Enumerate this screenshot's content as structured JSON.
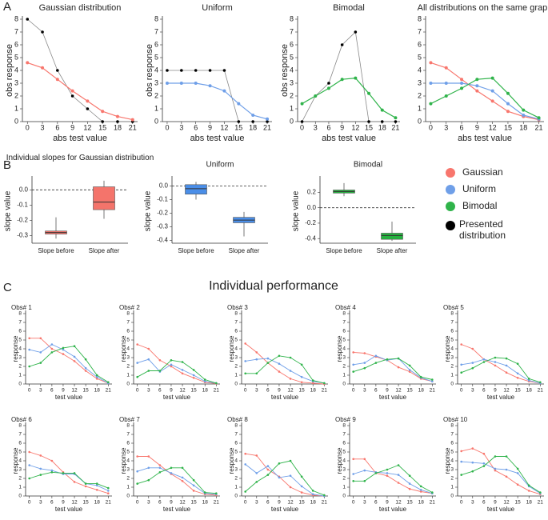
{
  "panel_labels": [
    "A",
    "B",
    "C"
  ],
  "section_title": "Individual performance",
  "legend": [
    {
      "name": "Gaussian",
      "color": "#f8766d"
    },
    {
      "name": "Uniform",
      "color": "#6f9fe8"
    },
    {
      "name": "Bimodal",
      "color": "#2fb34a"
    },
    {
      "name": "Presented distribution",
      "color": "#000000"
    }
  ],
  "chart_data": [
    {
      "type": "line",
      "title": "Gaussian distribution",
      "xlabel": "abs test value",
      "ylabel": "obs response",
      "x": [
        0,
        3,
        6,
        9,
        12,
        15,
        18,
        21
      ],
      "xlim": [
        -1,
        22
      ],
      "xticks": [
        0,
        3,
        6,
        9,
        12,
        15,
        18,
        21
      ],
      "ylim": [
        0,
        8
      ],
      "yticks": [
        0,
        1,
        2,
        3,
        4,
        5,
        6,
        7,
        8
      ],
      "series": [
        {
          "color": "#000000",
          "values": [
            8,
            7,
            4,
            2,
            1,
            0,
            0,
            0
          ]
        },
        {
          "color": "#f8766d",
          "values": [
            4.6,
            4.2,
            3.3,
            2.4,
            1.6,
            0.8,
            0.4,
            0.15
          ]
        }
      ]
    },
    {
      "type": "line",
      "title": "Uniform",
      "xlabel": "abs test value",
      "ylabel": "obs response",
      "x": [
        0,
        3,
        6,
        9,
        12,
        15,
        18,
        21
      ],
      "xlim": [
        -1,
        22
      ],
      "xticks": [
        0,
        3,
        6,
        9,
        12,
        15,
        18,
        21
      ],
      "ylim": [
        0,
        8
      ],
      "yticks": [
        0,
        1,
        2,
        3,
        4,
        5,
        6,
        7,
        8
      ],
      "series": [
        {
          "color": "#000000",
          "values": [
            4,
            4,
            4,
            4,
            4,
            0,
            0,
            0
          ]
        },
        {
          "color": "#6f9fe8",
          "values": [
            3.0,
            3.0,
            3.0,
            2.8,
            2.4,
            1.4,
            0.5,
            0.2
          ]
        }
      ]
    },
    {
      "type": "line",
      "title": "Bimodal",
      "xlabel": "abs test value",
      "ylabel": "obs response",
      "x": [
        0,
        3,
        6,
        9,
        12,
        15,
        18,
        21
      ],
      "xlim": [
        -1,
        22
      ],
      "xticks": [
        0,
        3,
        6,
        9,
        12,
        15,
        18,
        21
      ],
      "ylim": [
        0,
        8
      ],
      "yticks": [
        0,
        1,
        2,
        3,
        4,
        5,
        6,
        7,
        8
      ],
      "series": [
        {
          "color": "#000000",
          "values": [
            0,
            2,
            3,
            6,
            7,
            0,
            0,
            0
          ]
        },
        {
          "color": "#2fb34a",
          "values": [
            1.4,
            2.0,
            2.6,
            3.3,
            3.4,
            2.2,
            0.9,
            0.3
          ]
        }
      ]
    },
    {
      "type": "line",
      "title": "All distributions on the same graph",
      "xlabel": "abs test value",
      "x": [
        0,
        3,
        6,
        9,
        12,
        15,
        18,
        21
      ],
      "xlim": [
        -1,
        22
      ],
      "xticks": [
        0,
        3,
        6,
        9,
        12,
        15,
        18,
        21
      ],
      "ylim": [
        0,
        8
      ],
      "yticks": [
        0,
        1,
        2,
        3,
        4,
        5,
        6,
        7,
        8
      ],
      "series": [
        {
          "color": "#f8766d",
          "values": [
            4.6,
            4.2,
            3.3,
            2.4,
            1.6,
            0.8,
            0.4,
            0.15
          ]
        },
        {
          "color": "#6f9fe8",
          "values": [
            3.0,
            3.0,
            3.0,
            2.8,
            2.4,
            1.4,
            0.5,
            0.2
          ]
        },
        {
          "color": "#2fb34a",
          "values": [
            1.4,
            2.0,
            2.6,
            3.3,
            3.4,
            2.2,
            0.9,
            0.3
          ]
        }
      ]
    },
    {
      "type": "box",
      "title": "Individual slopes for Gaussian distribution",
      "ylabel": "slope value",
      "categories": [
        "Slope before",
        "Slope after"
      ],
      "color": "#f4746b",
      "hline": 0,
      "ylim": [
        -0.35,
        0.07
      ],
      "yticks": [
        {
          "value": 0,
          "label": "0.0"
        },
        -0.1,
        -0.2,
        -0.3
      ],
      "boxes": [
        {
          "low": -0.32,
          "q1": -0.29,
          "median": -0.28,
          "q3": -0.27,
          "high": -0.18
        },
        {
          "low": -0.19,
          "q1": -0.13,
          "median": -0.08,
          "q3": 0.02,
          "high": 0.06
        }
      ]
    },
    {
      "type": "box",
      "title": "Uniform",
      "ylabel": "slope value",
      "categories": [
        "Slope before",
        "Slope after"
      ],
      "color": "#4a8ee8",
      "hline": 0,
      "ylim": [
        -0.42,
        0.05
      ],
      "yticks": [
        {
          "value": 0,
          "label": "0.0"
        },
        -0.1,
        -0.2,
        -0.3,
        -0.4
      ],
      "boxes": [
        {
          "low": -0.1,
          "q1": -0.06,
          "median": -0.02,
          "q3": 0.01,
          "high": 0.03
        },
        {
          "low": -0.37,
          "q1": -0.27,
          "median": -0.25,
          "q3": -0.23,
          "high": -0.19
        }
      ]
    },
    {
      "type": "box",
      "title": "Bimodal",
      "ylabel": "slope value",
      "categories": [
        "Slope before",
        "Slope after"
      ],
      "color": "#24b33f",
      "hline": 0,
      "ylim": [
        -0.46,
        0.37
      ],
      "yticks": [
        0.2,
        {
          "value": 0,
          "label": "0.0"
        },
        -0.2,
        -0.4
      ],
      "boxes": [
        {
          "low": 0.15,
          "q1": 0.19,
          "median": 0.21,
          "q3": 0.23,
          "high": 0.32
        },
        {
          "low": -0.43,
          "q1": -0.41,
          "median": -0.36,
          "q3": -0.33,
          "high": -0.18
        }
      ]
    },
    {
      "type": "line",
      "title": "Obs# 1",
      "xlabel": "test value",
      "ylabel": "response",
      "x": [
        0,
        3,
        6,
        9,
        12,
        15,
        18,
        21
      ],
      "xlim": [
        -1,
        22
      ],
      "xticks": [
        0,
        3,
        6,
        9,
        12,
        15,
        18,
        21
      ],
      "ylim": [
        0,
        8
      ],
      "yticks": [
        0,
        1,
        2,
        3,
        4,
        5,
        6,
        7,
        8
      ],
      "series": [
        {
          "color": "#f8766d",
          "values": [
            5.2,
            5.2,
            4.0,
            3.4,
            2.6,
            1.5,
            0.6,
            0.1
          ]
        },
        {
          "color": "#6f9fe8",
          "values": [
            3.9,
            3.6,
            4.5,
            3.9,
            3.1,
            1.8,
            0.8,
            0.1
          ]
        },
        {
          "color": "#2fb34a",
          "values": [
            2.0,
            2.4,
            3.6,
            4.1,
            4.3,
            2.8,
            1.0,
            0.2
          ]
        }
      ]
    },
    {
      "type": "line",
      "title": "Obs# 2",
      "xlabel": "test value",
      "ylabel": "response",
      "x": [
        0,
        3,
        6,
        9,
        12,
        15,
        18,
        21
      ],
      "xlim": [
        -1,
        22
      ],
      "xticks": [
        0,
        3,
        6,
        9,
        12,
        15,
        18,
        21
      ],
      "ylim": [
        0,
        8
      ],
      "yticks": [
        0,
        1,
        2,
        3,
        4,
        5,
        6,
        7,
        8
      ],
      "series": [
        {
          "color": "#f8766d",
          "values": [
            4.5,
            4.0,
            2.7,
            2.0,
            1.2,
            0.7,
            0.2,
            0.05
          ]
        },
        {
          "color": "#6f9fe8",
          "values": [
            2.4,
            2.8,
            1.4,
            2.2,
            1.6,
            1.0,
            0.3,
            0.1
          ]
        },
        {
          "color": "#2fb34a",
          "values": [
            0.8,
            1.5,
            1.5,
            2.7,
            2.5,
            1.6,
            0.5,
            0.1
          ]
        }
      ]
    },
    {
      "type": "line",
      "title": "Obs# 3",
      "xlabel": "test value",
      "ylabel": "response",
      "x": [
        0,
        3,
        6,
        9,
        12,
        15,
        18,
        21
      ],
      "xlim": [
        -1,
        22
      ],
      "xticks": [
        0,
        3,
        6,
        9,
        12,
        15,
        18,
        21
      ],
      "ylim": [
        0,
        8
      ],
      "yticks": [
        0,
        1,
        2,
        3,
        4,
        5,
        6,
        7,
        8
      ],
      "series": [
        {
          "color": "#f8766d",
          "values": [
            4.6,
            3.6,
            2.4,
            1.4,
            0.6,
            0.2,
            0.1,
            0.0
          ]
        },
        {
          "color": "#6f9fe8",
          "values": [
            2.6,
            2.8,
            2.9,
            2.3,
            1.5,
            0.8,
            0.3,
            0.1
          ]
        },
        {
          "color": "#2fb34a",
          "values": [
            1.2,
            1.2,
            2.4,
            3.2,
            3.0,
            2.2,
            0.4,
            0.1
          ]
        }
      ]
    },
    {
      "type": "line",
      "title": "Obs# 4",
      "xlabel": "test value",
      "ylabel": "response",
      "x": [
        0,
        3,
        6,
        9,
        12,
        15,
        18,
        21
      ],
      "xlim": [
        -1,
        22
      ],
      "xticks": [
        0,
        3,
        6,
        9,
        12,
        15,
        18,
        21
      ],
      "ylim": [
        0,
        8
      ],
      "yticks": [
        0,
        1,
        2,
        3,
        4,
        5,
        6,
        7,
        8
      ],
      "series": [
        {
          "color": "#f8766d",
          "values": [
            3.6,
            3.5,
            3.1,
            2.7,
            1.9,
            1.4,
            0.6,
            0.3
          ]
        },
        {
          "color": "#6f9fe8",
          "values": [
            2.2,
            2.4,
            3.2,
            2.7,
            2.9,
            1.6,
            0.7,
            0.3
          ]
        },
        {
          "color": "#2fb34a",
          "values": [
            1.4,
            1.8,
            2.4,
            2.8,
            2.9,
            2.1,
            0.8,
            0.5
          ]
        }
      ]
    },
    {
      "type": "line",
      "title": "Obs# 5",
      "xlabel": "test value",
      "ylabel": "response",
      "x": [
        0,
        3,
        6,
        9,
        12,
        15,
        18,
        21
      ],
      "xlim": [
        -1,
        22
      ],
      "xticks": [
        0,
        3,
        6,
        9,
        12,
        15,
        18,
        21
      ],
      "ylim": [
        0,
        8
      ],
      "yticks": [
        0,
        1,
        2,
        3,
        4,
        5,
        6,
        7,
        8
      ],
      "series": [
        {
          "color": "#f8766d",
          "values": [
            4.5,
            4.0,
            2.8,
            2.1,
            1.3,
            0.7,
            0.3,
            0.1
          ]
        },
        {
          "color": "#6f9fe8",
          "values": [
            2.2,
            2.4,
            2.8,
            2.5,
            2.1,
            1.2,
            0.4,
            0.1
          ]
        },
        {
          "color": "#2fb34a",
          "values": [
            1.3,
            1.8,
            2.5,
            3.0,
            2.9,
            2.3,
            0.6,
            0.2
          ]
        }
      ]
    },
    {
      "type": "line",
      "title": "Obs# 6",
      "xlabel": "test value",
      "ylabel": "response",
      "x": [
        0,
        3,
        6,
        9,
        12,
        15,
        18,
        21
      ],
      "xlim": [
        -1,
        22
      ],
      "xticks": [
        0,
        3,
        6,
        9,
        12,
        15,
        18,
        21
      ],
      "ylim": [
        0,
        8
      ],
      "yticks": [
        0,
        1,
        2,
        3,
        4,
        5,
        6,
        7,
        8
      ],
      "series": [
        {
          "color": "#f8766d",
          "values": [
            5.0,
            4.6,
            4.0,
            2.7,
            1.6,
            1.1,
            0.7,
            0.3
          ]
        },
        {
          "color": "#6f9fe8",
          "values": [
            3.5,
            3.1,
            2.9,
            2.5,
            2.5,
            1.4,
            1.2,
            0.6
          ]
        },
        {
          "color": "#2fb34a",
          "values": [
            2.0,
            2.4,
            2.7,
            2.6,
            2.6,
            1.4,
            1.4,
            0.9
          ]
        }
      ]
    },
    {
      "type": "line",
      "title": "Obs# 7",
      "xlabel": "test value",
      "ylabel": "response",
      "x": [
        0,
        3,
        6,
        9,
        12,
        15,
        18,
        21
      ],
      "xlim": [
        -1,
        22
      ],
      "xticks": [
        0,
        3,
        6,
        9,
        12,
        15,
        18,
        21
      ],
      "ylim": [
        0,
        8
      ],
      "yticks": [
        0,
        1,
        2,
        3,
        4,
        5,
        6,
        7,
        8
      ],
      "series": [
        {
          "color": "#f8766d",
          "values": [
            4.5,
            4.5,
            3.5,
            2.5,
            1.7,
            0.6,
            0.2,
            0.1
          ]
        },
        {
          "color": "#6f9fe8",
          "values": [
            2.8,
            3.2,
            3.2,
            2.6,
            2.1,
            1.2,
            0.3,
            0.2
          ]
        },
        {
          "color": "#2fb34a",
          "values": [
            1.4,
            1.8,
            2.7,
            3.2,
            3.2,
            1.8,
            0.4,
            0.3
          ]
        }
      ]
    },
    {
      "type": "line",
      "title": "Obs# 8",
      "xlabel": "test value",
      "ylabel": "response",
      "x": [
        0,
        3,
        6,
        9,
        12,
        15,
        18,
        21
      ],
      "xlim": [
        -1,
        22
      ],
      "xticks": [
        0,
        3,
        6,
        9,
        12,
        15,
        18,
        21
      ],
      "ylim": [
        0,
        8
      ],
      "yticks": [
        0,
        1,
        2,
        3,
        4,
        5,
        6,
        7,
        8
      ],
      "series": [
        {
          "color": "#f8766d",
          "values": [
            4.8,
            4.6,
            3.0,
            2.2,
            1.0,
            0.4,
            0.1,
            0.0
          ]
        },
        {
          "color": "#6f9fe8",
          "values": [
            3.6,
            2.6,
            3.4,
            2.1,
            2.3,
            1.1,
            0.2,
            0.0
          ]
        },
        {
          "color": "#2fb34a",
          "values": [
            0.5,
            1.6,
            2.4,
            3.7,
            4.0,
            2.2,
            0.6,
            0.1
          ]
        }
      ]
    },
    {
      "type": "line",
      "title": "Obs# 9",
      "xlabel": "test value",
      "ylabel": "response",
      "x": [
        0,
        3,
        6,
        9,
        12,
        15,
        18,
        21
      ],
      "xlim": [
        -1,
        22
      ],
      "xticks": [
        0,
        3,
        6,
        9,
        12,
        15,
        18,
        21
      ],
      "ylim": [
        0,
        8
      ],
      "yticks": [
        0,
        1,
        2,
        3,
        4,
        5,
        6,
        7,
        8
      ],
      "series": [
        {
          "color": "#f8766d",
          "values": [
            4.2,
            4.2,
            2.6,
            2.3,
            1.5,
            0.8,
            0.5,
            0.3
          ]
        },
        {
          "color": "#6f9fe8",
          "values": [
            2.5,
            2.9,
            2.7,
            2.6,
            2.4,
            1.4,
            0.7,
            0.3
          ]
        },
        {
          "color": "#2fb34a",
          "values": [
            1.7,
            1.7,
            2.6,
            3.0,
            3.5,
            2.3,
            1.1,
            0.4
          ]
        }
      ]
    },
    {
      "type": "line",
      "title": "Obs# 10",
      "xlabel": "test value",
      "ylabel": "response",
      "x": [
        0,
        3,
        6,
        9,
        12,
        15,
        18,
        21
      ],
      "xlim": [
        -1,
        22
      ],
      "xticks": [
        0,
        3,
        6,
        9,
        12,
        15,
        18,
        21
      ],
      "ylim": [
        0,
        8
      ],
      "yticks": [
        0,
        1,
        2,
        3,
        4,
        5,
        6,
        7,
        8
      ],
      "series": [
        {
          "color": "#f8766d",
          "values": [
            5.1,
            5.4,
            4.8,
            2.9,
            2.2,
            1.3,
            0.6,
            0.2
          ]
        },
        {
          "color": "#6f9fe8",
          "values": [
            3.9,
            3.8,
            3.7,
            3.1,
            3.0,
            2.6,
            1.1,
            0.3
          ]
        },
        {
          "color": "#2fb34a",
          "values": [
            2.4,
            2.8,
            3.4,
            4.5,
            4.5,
            3.1,
            1.2,
            0.4
          ]
        }
      ]
    }
  ]
}
